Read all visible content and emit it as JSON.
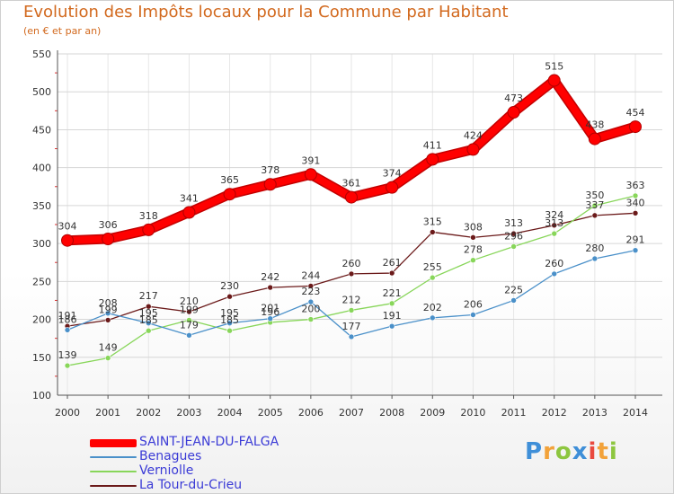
{
  "title": "Evolution des Impôts locaux pour la Commune par Habitant",
  "subtitle": "(en € et par an)",
  "logo": {
    "text": "Proxiti",
    "letters": [
      {
        "ch": "P",
        "color": "#3f8fd8"
      },
      {
        "ch": "r",
        "color": "#f2a23a"
      },
      {
        "ch": "o",
        "color": "#8dc63f"
      },
      {
        "ch": "x",
        "color": "#3f8fd8"
      },
      {
        "ch": "i",
        "color": "#e94a3f"
      },
      {
        "ch": "t",
        "color": "#f2a23a"
      },
      {
        "ch": "i",
        "color": "#8dc63f"
      }
    ]
  },
  "chart_data": {
    "type": "line",
    "title": "Evolution des Impôts locaux pour la Commune par Habitant",
    "subtitle": "(en € et par an)",
    "xlabel": "",
    "ylabel": "",
    "ylim": [
      100,
      550
    ],
    "yticks": [
      100,
      150,
      200,
      250,
      300,
      350,
      400,
      450,
      500,
      550
    ],
    "x": [
      2000,
      2001,
      2002,
      2003,
      2004,
      2005,
      2006,
      2007,
      2008,
      2009,
      2010,
      2011,
      2012,
      2013,
      2014
    ],
    "grid": true,
    "legend_position": "bottom-left",
    "series": [
      {
        "name": "SAINT-JEAN-DU-FALGA",
        "color": "#ff0000",
        "values": [
          304,
          306,
          318,
          341,
          365,
          378,
          391,
          361,
          374,
          411,
          424,
          473,
          515,
          438,
          454
        ]
      },
      {
        "name": "Benagues",
        "color": "#4a90c9",
        "values": [
          186,
          208,
          195,
          179,
          195,
          201,
          223,
          177,
          191,
          202,
          206,
          225,
          260,
          280,
          291
        ]
      },
      {
        "name": "Verniolle",
        "color": "#88d65a",
        "values": [
          139,
          149,
          185,
          199,
          185,
          196,
          200,
          212,
          221,
          255,
          278,
          296,
          313,
          350,
          363
        ]
      },
      {
        "name": "La Tour-du-Crieu",
        "color": "#6b1a1a",
        "values": [
          191,
          199,
          217,
          210,
          230,
          242,
          244,
          260,
          261,
          315,
          308,
          313,
          324,
          337,
          340
        ]
      }
    ]
  }
}
